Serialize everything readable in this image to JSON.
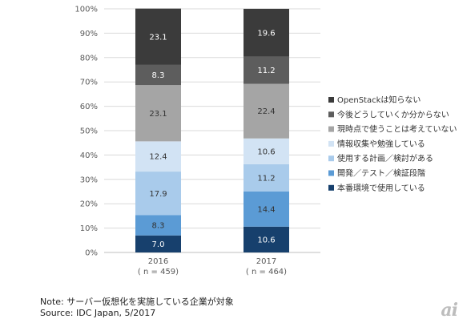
{
  "chart_data": {
    "type": "bar",
    "stacked": true,
    "categories": [
      "2016",
      "2017"
    ],
    "category_sublabels": [
      "( n = 459)",
      "( n = 464)"
    ],
    "y_ticks": [
      "0%",
      "10%",
      "20%",
      "30%",
      "40%",
      "50%",
      "60%",
      "70%",
      "80%",
      "90%",
      "100%"
    ],
    "ylim": [
      0,
      100
    ],
    "grid": true,
    "legend_position": "right",
    "series": [
      {
        "name": "本番環境で使用している",
        "color": "#17406d",
        "values": [
          7.0,
          10.6
        ],
        "value_labels": [
          "7.0",
          "10.6"
        ]
      },
      {
        "name": "開発／テスト／検証段階",
        "color": "#5b9bd5",
        "values": [
          8.3,
          14.4
        ],
        "value_labels": [
          "8.3",
          "14.4"
        ]
      },
      {
        "name": "使用する計画／検討がある",
        "color": "#a9cbeb",
        "values": [
          17.9,
          11.2
        ],
        "value_labels": [
          "17.9",
          "11.2"
        ]
      },
      {
        "name": "情報収集や勉強している",
        "color": "#d2e3f4",
        "values": [
          12.4,
          10.6
        ],
        "value_labels": [
          "12.4",
          "10.6"
        ]
      },
      {
        "name": "現時点で使うことは考えていない",
        "color": "#a5a5a5",
        "values": [
          23.1,
          22.4
        ],
        "value_labels": [
          "23.1",
          "22.4"
        ]
      },
      {
        "name": "今後どうしていくか分からない",
        "color": "#5d5d5d",
        "values": [
          8.3,
          11.2
        ],
        "value_labels": [
          "8.3",
          "11.2"
        ]
      },
      {
        "name": "OpenStackは知らない",
        "color": "#3b3b3b",
        "values": [
          23.1,
          19.6
        ],
        "value_labels": [
          "23.1",
          "19.6"
        ]
      }
    ]
  },
  "footer": {
    "note": "Note: サーバー仮想化を実施している企業が対象",
    "source": "Source: IDC Japan, 5/2017"
  },
  "watermark": "ai"
}
